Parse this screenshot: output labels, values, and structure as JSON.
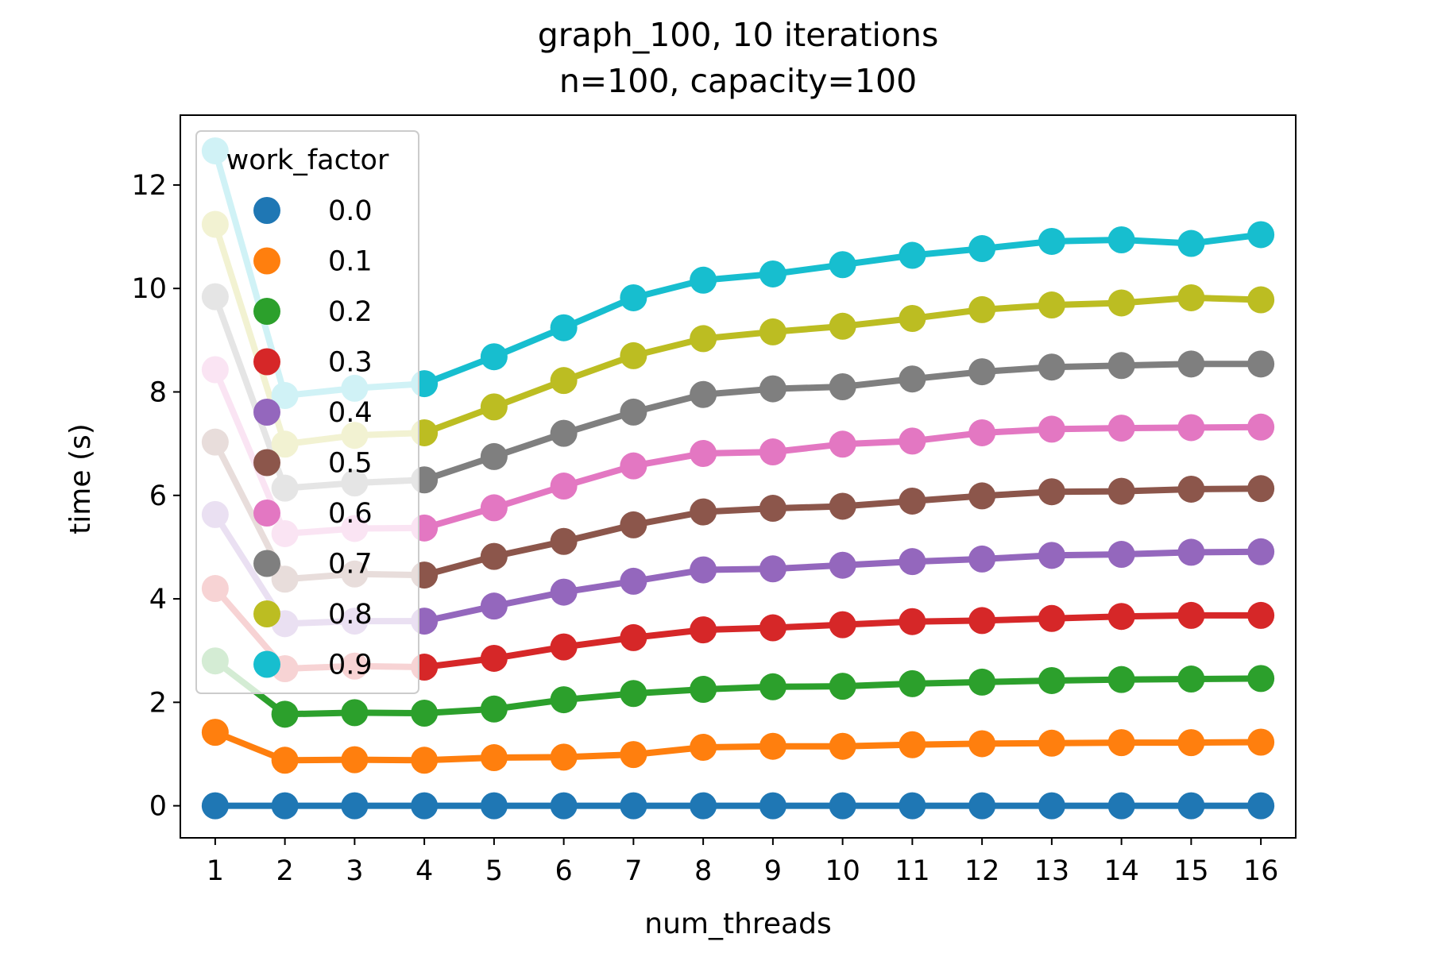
{
  "chart_data": {
    "type": "line",
    "title": "graph_100, 10 iterations",
    "subtitle": "n=100, capacity=100",
    "xlabel": "num_threads",
    "ylabel": "time (s)",
    "x": [
      1,
      2,
      3,
      4,
      5,
      6,
      7,
      8,
      9,
      10,
      11,
      12,
      13,
      14,
      15,
      16
    ],
    "xlim": [
      0.5,
      16.5
    ],
    "ylim": [
      -0.62,
      13.35
    ],
    "xticks": [
      1,
      2,
      3,
      4,
      5,
      6,
      7,
      8,
      9,
      10,
      11,
      12,
      13,
      14,
      15,
      16
    ],
    "yticks": [
      0,
      2,
      4,
      6,
      8,
      10,
      12
    ],
    "grid": false,
    "legend": {
      "title": "work_factor",
      "placement": "upper-left"
    },
    "series": [
      {
        "name": "0.0",
        "color": "#1f77b4",
        "values": [
          0,
          0,
          0,
          0,
          0,
          0,
          0,
          0,
          0,
          0,
          0,
          0,
          0,
          0,
          0,
          0
        ]
      },
      {
        "name": "0.1",
        "color": "#ff7f0e",
        "values": [
          1.42,
          0.88,
          0.89,
          0.88,
          0.93,
          0.94,
          0.99,
          1.13,
          1.15,
          1.15,
          1.18,
          1.2,
          1.21,
          1.22,
          1.22,
          1.23
        ]
      },
      {
        "name": "0.2",
        "color": "#2ca02c",
        "values": [
          2.8,
          1.77,
          1.8,
          1.79,
          1.87,
          2.05,
          2.17,
          2.25,
          2.3,
          2.31,
          2.36,
          2.39,
          2.42,
          2.44,
          2.45,
          2.46
        ]
      },
      {
        "name": "0.3",
        "color": "#d62728",
        "values": [
          4.2,
          2.65,
          2.7,
          2.68,
          2.85,
          3.07,
          3.25,
          3.4,
          3.44,
          3.5,
          3.56,
          3.58,
          3.62,
          3.66,
          3.68,
          3.68
        ]
      },
      {
        "name": "0.4",
        "color": "#9467bd",
        "values": [
          5.63,
          3.52,
          3.57,
          3.57,
          3.86,
          4.13,
          4.34,
          4.56,
          4.58,
          4.65,
          4.72,
          4.77,
          4.84,
          4.86,
          4.9,
          4.91
        ]
      },
      {
        "name": "0.5",
        "color": "#8c564b",
        "values": [
          7.03,
          4.38,
          4.48,
          4.46,
          4.82,
          5.11,
          5.43,
          5.68,
          5.75,
          5.79,
          5.89,
          5.99,
          6.07,
          6.08,
          6.12,
          6.13
        ]
      },
      {
        "name": "0.6",
        "color": "#e377c2",
        "values": [
          8.43,
          5.26,
          5.36,
          5.37,
          5.76,
          6.18,
          6.57,
          6.81,
          6.84,
          6.99,
          7.05,
          7.21,
          7.28,
          7.3,
          7.31,
          7.32
        ]
      },
      {
        "name": "0.7",
        "color": "#7f7f7f",
        "values": [
          9.84,
          6.14,
          6.24,
          6.3,
          6.75,
          7.2,
          7.61,
          7.95,
          8.06,
          8.1,
          8.25,
          8.39,
          8.48,
          8.51,
          8.54,
          8.54
        ]
      },
      {
        "name": "0.8",
        "color": "#bcbd22",
        "values": [
          11.24,
          6.99,
          7.16,
          7.21,
          7.71,
          8.22,
          8.7,
          9.03,
          9.16,
          9.27,
          9.42,
          9.59,
          9.68,
          9.72,
          9.82,
          9.78
        ]
      },
      {
        "name": "0.9",
        "color": "#17becf",
        "values": [
          12.66,
          7.93,
          8.07,
          8.16,
          8.68,
          9.24,
          9.82,
          10.16,
          10.28,
          10.46,
          10.64,
          10.77,
          10.91,
          10.94,
          10.87,
          11.04
        ]
      }
    ]
  }
}
